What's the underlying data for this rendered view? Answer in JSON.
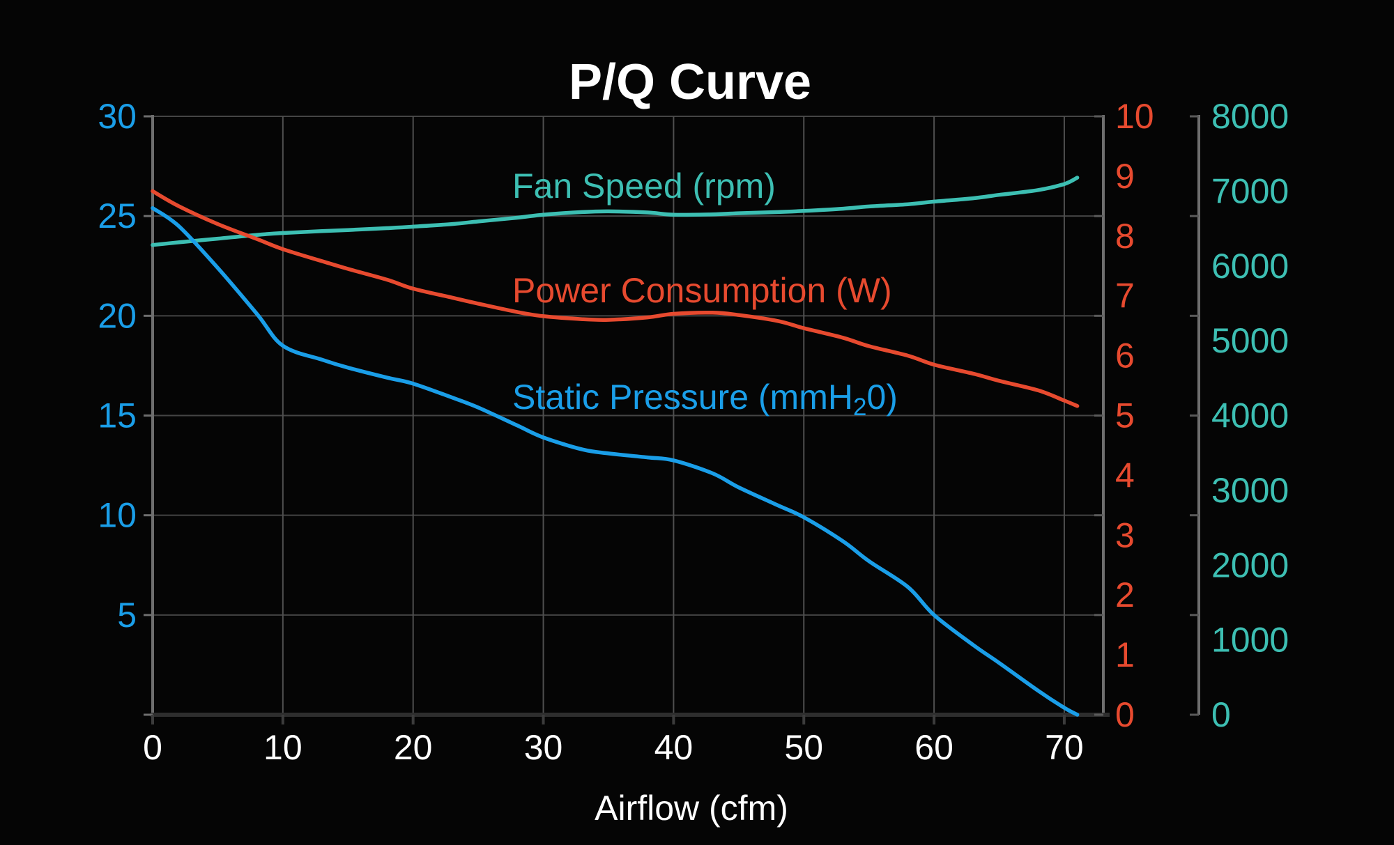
{
  "chart_data": {
    "type": "line",
    "title": "P/Q Curve",
    "background_color": "#050505",
    "style": {
      "h_grid_color": "#454545",
      "v_grid_color": "#4f4f4f",
      "axis_line_color": "#6e6e6e",
      "bottom_axis_color": "#2e2e2e",
      "tick_color": "#5a5a5a",
      "x_tick_label_color": "#ffffff",
      "title_color": "#ffffff"
    },
    "x_axis": {
      "label": "Airflow (cfm)",
      "min": 0,
      "max": 73,
      "ticks": [
        0,
        10,
        20,
        30,
        40,
        50,
        60,
        70
      ]
    },
    "axes": {
      "static_pressure": {
        "side": "left",
        "min": 0,
        "max": 30,
        "ticks": [
          5,
          10,
          15,
          20,
          25,
          30
        ],
        "color": "#1a9ee8"
      },
      "power": {
        "side": "right-inner",
        "min": 0,
        "max": 10,
        "ticks": [
          0,
          1,
          2,
          3,
          4,
          5,
          6,
          7,
          8,
          9,
          10
        ],
        "color": "#e74a2f"
      },
      "fan_speed": {
        "side": "right-outer",
        "min": 0,
        "max": 8000,
        "ticks": [
          0,
          1000,
          2000,
          3000,
          4000,
          5000,
          6000,
          7000,
          8000
        ],
        "color": "#3dbfb3"
      }
    },
    "x": [
      0,
      2,
      5,
      8,
      10,
      13,
      15,
      18,
      20,
      23,
      25,
      28,
      30,
      33,
      35,
      38,
      40,
      43,
      45,
      48,
      50,
      53,
      55,
      58,
      60,
      63,
      65,
      68,
      70,
      71
    ],
    "series": [
      {
        "name": "Fan Speed (rpm)",
        "axis": "fan_speed",
        "color": "#3dbfb3",
        "values": [
          6280,
          6315,
          6365,
          6415,
          6440,
          6465,
          6480,
          6505,
          6525,
          6560,
          6595,
          6645,
          6685,
          6720,
          6730,
          6715,
          6685,
          6690,
          6705,
          6720,
          6735,
          6765,
          6795,
          6825,
          6860,
          6905,
          6950,
          7015,
          7095,
          7180
        ]
      },
      {
        "name": "Power Consumption (W)",
        "axis": "power",
        "color": "#e74a2f",
        "values": [
          8.75,
          8.5,
          8.2,
          7.95,
          7.78,
          7.58,
          7.45,
          7.27,
          7.12,
          6.97,
          6.87,
          6.73,
          6.66,
          6.61,
          6.6,
          6.64,
          6.7,
          6.72,
          6.68,
          6.58,
          6.46,
          6.3,
          6.16,
          6.0,
          5.85,
          5.7,
          5.58,
          5.42,
          5.25,
          5.16
        ]
      },
      {
        "name": "Static Pressure (mmH₂0)",
        "axis": "static_pressure",
        "color": "#1a9ee8",
        "values": [
          25.4,
          24.5,
          22.4,
          20.1,
          18.5,
          17.8,
          17.4,
          16.9,
          16.6,
          15.9,
          15.4,
          14.5,
          13.9,
          13.3,
          13.1,
          12.9,
          12.75,
          12.1,
          11.4,
          10.5,
          9.9,
          8.7,
          7.7,
          6.4,
          5.0,
          3.5,
          2.6,
          1.2,
          0.35,
          0
        ]
      }
    ],
    "legend": "in-plot curve labels",
    "grid": true
  }
}
